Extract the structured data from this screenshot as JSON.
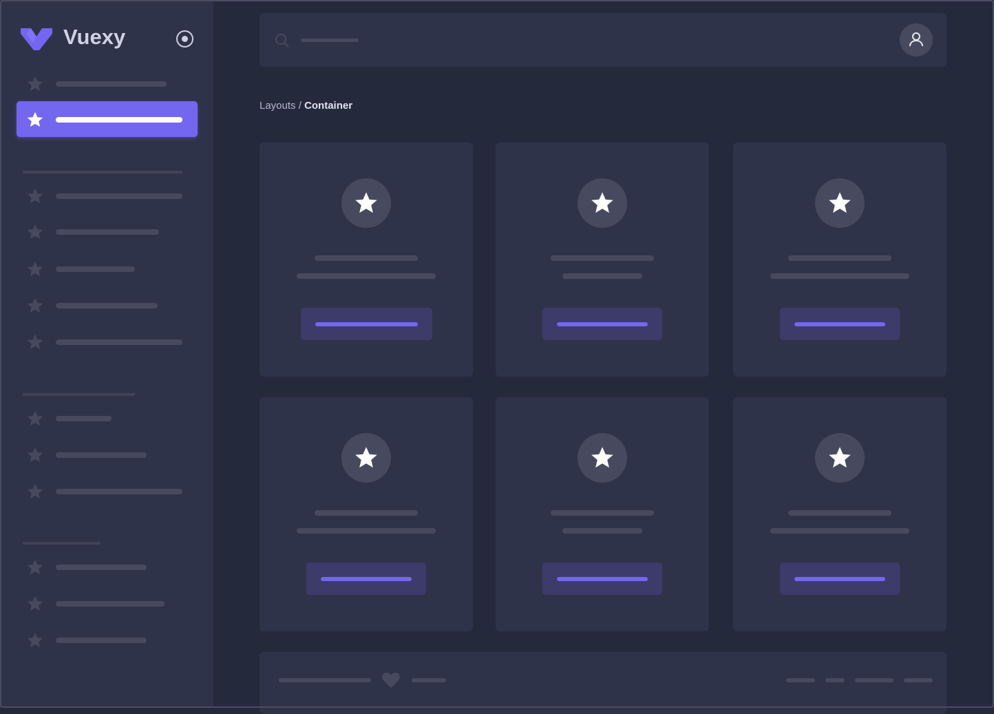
{
  "brand": {
    "name": "Vuexy",
    "logo_color": "#7367f0",
    "toggle_icon": "radio-circle-icon"
  },
  "header": {
    "search_icon": "search-icon",
    "avatar_icon": "user-icon"
  },
  "breadcrumb": {
    "parent": "Layouts",
    "separator": " / ",
    "current": "Container"
  },
  "sidebar": {
    "item_icon": "star-icon",
    "active_index": 1
  },
  "cards": {
    "count": 6,
    "icon": "star-icon"
  },
  "footer": {
    "icon": "heart-icon"
  },
  "colors": {
    "primary": "#7367f0",
    "sidebar_bg": "#2f3349",
    "page_bg": "#25293c",
    "skeleton": "#474a5f",
    "button_bg": "#3c3b6a"
  }
}
